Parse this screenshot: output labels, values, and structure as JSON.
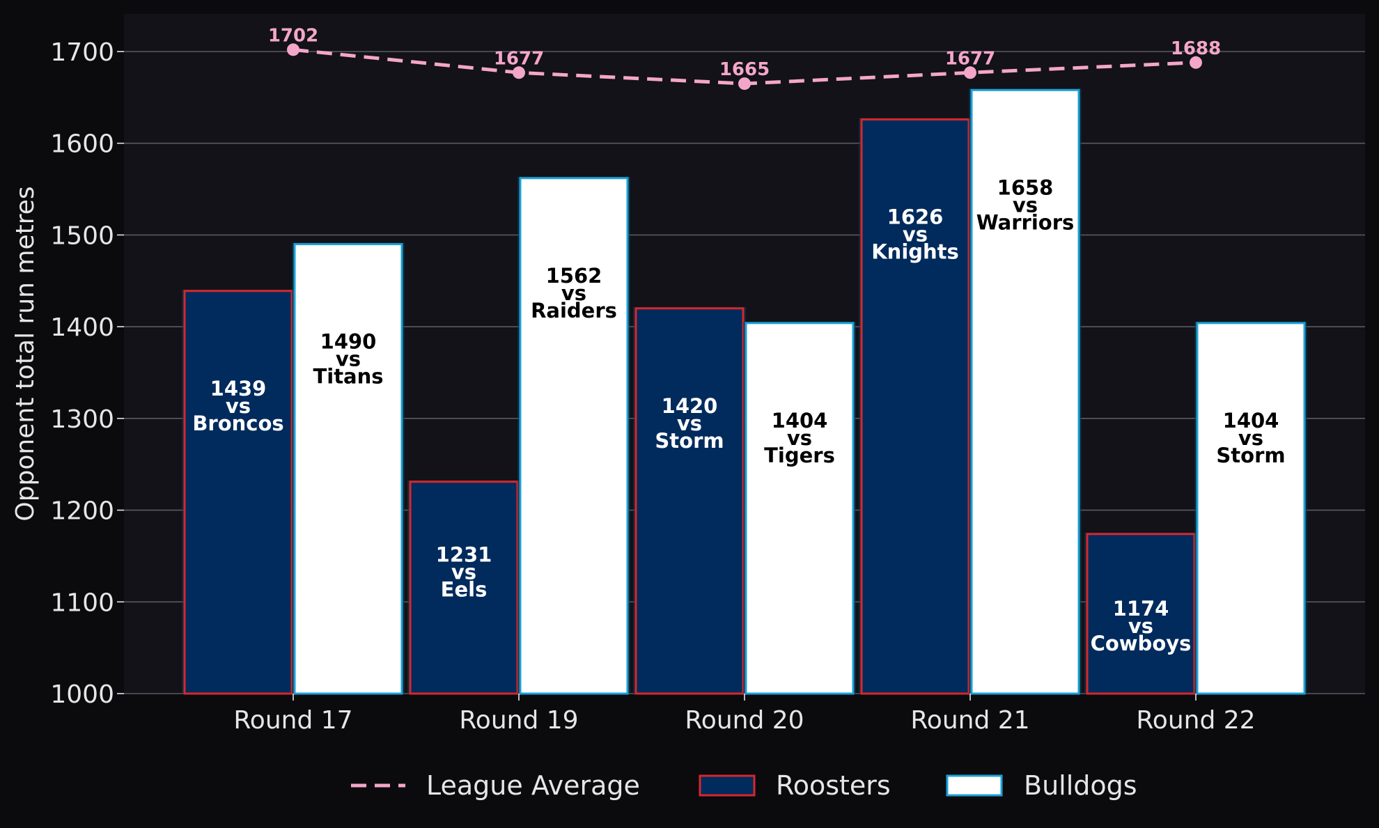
{
  "chart_data": {
    "type": "bar",
    "ylabel": "Opponent total run metres",
    "ylim": [
      1000,
      1750
    ],
    "yticks": [
      1000,
      1100,
      1200,
      1300,
      1400,
      1500,
      1600,
      1700
    ],
    "grid": "horizontal",
    "legend_position": "bottom",
    "categories": [
      "Round 17",
      "Round 19",
      "Round 20",
      "Round 21",
      "Round 22"
    ],
    "series": [
      {
        "name": "Roosters",
        "type": "bar",
        "fill": "#002b5c",
        "edge": "#d9262c",
        "label_color": "#ffffff",
        "values": [
          1439,
          1231,
          1420,
          1626,
          1174
        ],
        "opponents": [
          "Broncos",
          "Eels",
          "Storm",
          "Knights",
          "Cowboys"
        ]
      },
      {
        "name": "Bulldogs",
        "type": "bar",
        "fill": "#ffffff",
        "edge": "#1ba1d8",
        "label_color": "#000000",
        "values": [
          1490,
          1562,
          1404,
          1658,
          1404
        ],
        "opponents": [
          "Titans",
          "Raiders",
          "Tigers",
          "Warriors",
          "Storm"
        ]
      },
      {
        "name": "League Average",
        "type": "line",
        "style": "dashed",
        "color": "#f4a6c9",
        "values": [
          1702,
          1677,
          1665,
          1677,
          1688
        ]
      }
    ],
    "vs_text": "vs"
  },
  "colors": {
    "page_background": "#0b0b0e",
    "plot_background": "#121218",
    "grid": "#5a5a60",
    "text": "#e6e6e6"
  }
}
